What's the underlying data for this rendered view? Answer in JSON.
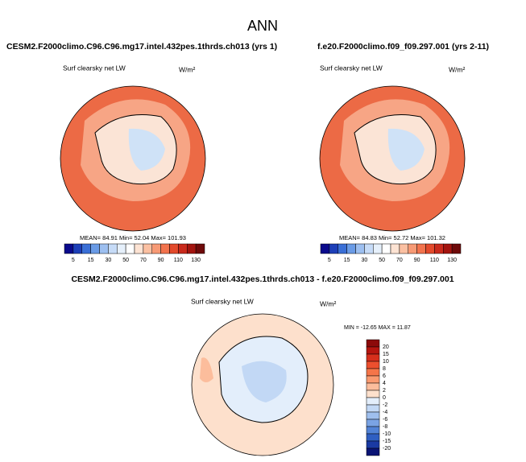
{
  "title": "ANN",
  "panels": [
    {
      "title": "CESM2.F2000climo.C96.C96.mg17.intel.432pes.1thrds.ch013 (yrs 1)",
      "variable": "Surf clearsky net LW",
      "units": "W/m²",
      "stats": "MEAN= 84.91  Min= 52.04  Max= 101.93",
      "colorbar": {
        "labels": [
          "5",
          "15",
          "30",
          "50",
          "70",
          "90",
          "110",
          "130"
        ],
        "colors": [
          "#0a0a8c",
          "#1d3fb8",
          "#3a6fd6",
          "#6a9be6",
          "#9dbff0",
          "#c6dbf7",
          "#e6f0fb",
          "#ffffff",
          "#fde3d3",
          "#fbc0a2",
          "#f79a75",
          "#f2734d",
          "#e34a2c",
          "#c92a1c",
          "#a3140f",
          "#6e0a0a"
        ]
      }
    },
    {
      "title": "f.e20.F2000climo.f09_f09.297.001 (yrs 2-11)",
      "variable": "Surf clearsky net LW",
      "units": "W/m²",
      "stats": "MEAN= 84.83  Min= 52.72  Max= 101.32",
      "colorbar": {
        "labels": [
          "5",
          "15",
          "30",
          "50",
          "70",
          "90",
          "110",
          "130"
        ],
        "colors": [
          "#0a0a8c",
          "#1d3fb8",
          "#3a6fd6",
          "#6a9be6",
          "#9dbff0",
          "#c6dbf7",
          "#e6f0fb",
          "#ffffff",
          "#fde3d3",
          "#fbc0a2",
          "#f79a75",
          "#f2734d",
          "#e34a2c",
          "#c92a1c",
          "#a3140f",
          "#6e0a0a"
        ]
      }
    }
  ],
  "difference": {
    "title": "CESM2.F2000climo.C96.C96.mg17.intel.432pes.1thrds.ch013 - f.e20.F2000climo.f09_f09.297.001",
    "variable": "Surf clearsky net LW",
    "units": "W/m²",
    "stats": "MIN = -12.65 MAX =  11.87",
    "colorbar": {
      "labels": [
        "20",
        "15",
        "10",
        "8",
        "6",
        "4",
        "2",
        "0",
        "-2",
        "-4",
        "-6",
        "-8",
        "-10",
        "-15",
        "-20"
      ],
      "colors": [
        "#8c0a0a",
        "#b5150f",
        "#d62f1c",
        "#ec4f2e",
        "#f57549",
        "#fa9a70",
        "#fcbd9c",
        "#fde0cc",
        "#e3eefb",
        "#c2d8f5",
        "#9fbfee",
        "#7aa3e4",
        "#5283d6",
        "#2f5fc2",
        "#1a3aa3",
        "#0a1475"
      ]
    }
  }
}
